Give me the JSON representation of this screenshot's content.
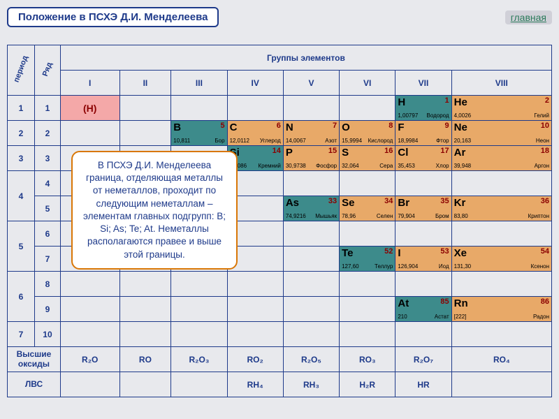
{
  "title": "Положение в ПСХЭ Д.И. Менделеева",
  "main_link": "главная",
  "labels": {
    "period": "период",
    "row": "Ряд",
    "groups_header": "Группы элементов",
    "oxides": "Высшие оксиды",
    "hydrides": "ЛВС"
  },
  "group_romans": [
    "I",
    "II",
    "III",
    "IV",
    "V",
    "VI",
    "VII",
    "VIII"
  ],
  "periods": [
    "1",
    "2",
    "3",
    "4",
    "5",
    "6",
    "7"
  ],
  "rows": [
    "1",
    "2",
    "3",
    "4",
    "5",
    "6",
    "7",
    "8",
    "9",
    "10"
  ],
  "note": "В ПСХЭ Д.И. Менделеева граница, отделяющая металлы от неметаллов, проходит по следующим неметаллам – элементам главных подгрупп: B; Si; As; Te; At. Неметаллы располагаются правее и выше этой границы.",
  "colors": {
    "teal": "#3d8b8b",
    "orange": "#e8a968",
    "pink": "#f4a8a8",
    "darkteal": "#2a6b6b"
  },
  "elements": {
    "H_left": {
      "sym": "(H)",
      "num": "",
      "mass": "",
      "name": "",
      "bg": "#f4a8a8"
    },
    "H": {
      "sym": "H",
      "num": "1",
      "mass": "1,00797",
      "name": "Водород",
      "bg": "#3d8b8b"
    },
    "He": {
      "sym": "He",
      "num": "2",
      "mass": "4,0026",
      "name": "Гелий",
      "bg": "#e8a968"
    },
    "B": {
      "sym": "B",
      "num": "5",
      "mass": "10,811",
      "name": "Бор",
      "bg": "#3d8b8b"
    },
    "C": {
      "sym": "C",
      "num": "6",
      "mass": "12,0112",
      "name": "Углерод",
      "bg": "#e8a968"
    },
    "N": {
      "sym": "N",
      "num": "7",
      "mass": "14,0067",
      "name": "Азот",
      "bg": "#e8a968"
    },
    "O": {
      "sym": "O",
      "num": "8",
      "mass": "15,9994",
      "name": "Кислород",
      "bg": "#e8a968"
    },
    "F": {
      "sym": "F",
      "num": "9",
      "mass": "18,9984",
      "name": "Фтор",
      "bg": "#e8a968"
    },
    "Ne": {
      "sym": "Ne",
      "num": "10",
      "mass": "20,163",
      "name": "Неон",
      "bg": "#e8a968"
    },
    "Si": {
      "sym": "Si",
      "num": "14",
      "mass": "28,086",
      "name": "Кремний",
      "bg": "#3d8b8b"
    },
    "P": {
      "sym": "P",
      "num": "15",
      "mass": "30,9738",
      "name": "Фосфор",
      "bg": "#e8a968"
    },
    "S": {
      "sym": "S",
      "num": "16",
      "mass": "32,064",
      "name": "Сера",
      "bg": "#e8a968"
    },
    "Cl": {
      "sym": "Cl",
      "num": "17",
      "mass": "35,453",
      "name": "Хлор",
      "bg": "#e8a968"
    },
    "Ar": {
      "sym": "Ar",
      "num": "18",
      "mass": "39,948",
      "name": "Аргон",
      "bg": "#e8a968"
    },
    "As": {
      "sym": "As",
      "num": "33",
      "mass": "74,9216",
      "name": "Мышьяк",
      "bg": "#3d8b8b"
    },
    "Se": {
      "sym": "Se",
      "num": "34",
      "mass": "78,96",
      "name": "Селен",
      "bg": "#e8a968"
    },
    "Br": {
      "sym": "Br",
      "num": "35",
      "mass": "79,904",
      "name": "Бром",
      "bg": "#e8a968"
    },
    "Kr": {
      "sym": "Kr",
      "num": "36",
      "mass": "83,80",
      "name": "Криптон",
      "bg": "#e8a968"
    },
    "Te": {
      "sym": "Te",
      "num": "52",
      "mass": "127,60",
      "name": "Теллур",
      "bg": "#3d8b8b"
    },
    "I": {
      "sym": "I",
      "num": "53",
      "mass": "126,904",
      "name": "Иод",
      "bg": "#e8a968"
    },
    "Xe": {
      "sym": "Xe",
      "num": "54",
      "mass": "131,30",
      "name": "Ксенон",
      "bg": "#e8a968"
    },
    "At": {
      "sym": "At",
      "num": "85",
      "mass": "210",
      "name": "Астат",
      "bg": "#3d8b8b"
    },
    "Rn": {
      "sym": "Rn",
      "num": "86",
      "mass": "[222]",
      "name": "Радон",
      "bg": "#e8a968"
    }
  },
  "oxides": [
    "R₂O",
    "RO",
    "R₂O₃",
    "RO₂",
    "R₂O₅",
    "RO₃",
    "R₂O₇",
    "RO₄"
  ],
  "hydrides": [
    "",
    "",
    "",
    "RH₄",
    "RH₃",
    "H₂R",
    "HR",
    ""
  ],
  "layout": [
    [
      null,
      null,
      null,
      null,
      null,
      null,
      "H",
      "He"
    ],
    [
      null,
      null,
      "B",
      "C",
      "N",
      "O",
      "F",
      "Ne"
    ],
    [
      null,
      null,
      null,
      "Si",
      "P",
      "S",
      "Cl",
      "Ar"
    ],
    [
      null,
      null,
      null,
      null,
      null,
      null,
      null,
      null
    ],
    [
      null,
      null,
      null,
      null,
      "As",
      "Se",
      "Br",
      "Kr"
    ],
    [
      null,
      null,
      null,
      null,
      null,
      null,
      null,
      null
    ],
    [
      null,
      null,
      null,
      null,
      null,
      "Te",
      "I",
      "Xe"
    ],
    [
      null,
      null,
      null,
      null,
      null,
      null,
      null,
      null
    ],
    [
      null,
      null,
      null,
      null,
      null,
      null,
      "At",
      "Rn"
    ],
    [
      null,
      null,
      null,
      null,
      null,
      null,
      null,
      null
    ]
  ],
  "period_rowspans": [
    1,
    1,
    1,
    2,
    2,
    2,
    1
  ]
}
